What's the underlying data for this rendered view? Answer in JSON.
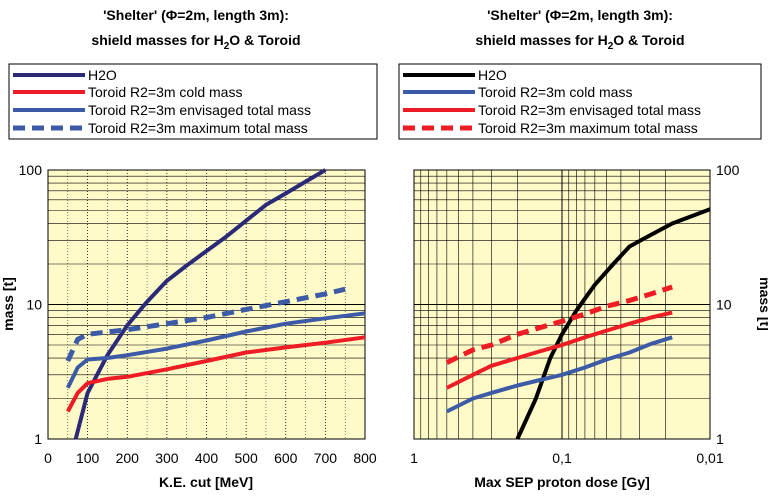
{
  "colors": {
    "plot_bg": "#fefbc8",
    "navy": "#2b2a77",
    "red": "#ee1c24",
    "blue": "#3c5aa6",
    "black": "#000000"
  },
  "chart_data": [
    {
      "type": "line",
      "title_line1": "'Shelter' (Φ=2m, length 3m):",
      "title_line2": "shield masses for H",
      "title_sub": "2",
      "title_line2_end": "O & Toroid",
      "xlabel": "K.E. cut [MeV]",
      "ylabel": "mass [t]",
      "xlim": [
        0,
        800
      ],
      "ylim": [
        1,
        100
      ],
      "y_scale": "log",
      "x_ticks": [
        "0",
        "100",
        "200",
        "300",
        "400",
        "500",
        "600",
        "700",
        "800"
      ],
      "y_ticks": [
        "1",
        "10",
        "100"
      ],
      "legend_placement": "above plot",
      "series": [
        {
          "name": "H2O",
          "style": "solid",
          "color": "#2b2a77",
          "x": [
            70,
            100,
            150,
            200,
            250,
            300,
            350,
            400,
            450,
            500,
            550,
            600,
            650,
            700
          ],
          "y": [
            1.0,
            2.2,
            4.2,
            7.0,
            10.5,
            15.0,
            19.5,
            25.0,
            32.0,
            42.0,
            55.0,
            67.0,
            82.0,
            100.0
          ]
        },
        {
          "name": "Toroid R2=3m cold mass",
          "style": "solid",
          "color": "#ee1c24",
          "x": [
            50,
            75,
            100,
            150,
            200,
            300,
            400,
            500,
            600,
            700,
            800
          ],
          "y": [
            1.6,
            2.2,
            2.6,
            2.8,
            2.9,
            3.3,
            3.8,
            4.4,
            4.8,
            5.2,
            5.7
          ]
        },
        {
          "name": "Toroid R2=3m envisaged total mass",
          "style": "solid",
          "color": "#3c5aa6",
          "x": [
            50,
            75,
            100,
            150,
            200,
            300,
            400,
            500,
            600,
            700,
            800
          ],
          "y": [
            2.4,
            3.4,
            3.9,
            4.0,
            4.2,
            4.7,
            5.4,
            6.3,
            7.2,
            7.9,
            8.6
          ]
        },
        {
          "name": "Toroid R2=3m maximum total mass",
          "style": "dashed",
          "color": "#3c5aa6",
          "x": [
            50,
            75,
            100,
            200,
            300,
            400,
            500,
            600,
            700,
            750
          ],
          "y": [
            3.8,
            5.5,
            6.0,
            6.5,
            7.2,
            8.0,
            9.2,
            10.5,
            12.0,
            13.0
          ]
        }
      ]
    },
    {
      "type": "line",
      "title_line1": "'Shelter' (Φ=2m, length 3m):",
      "title_line2": "shield masses for H",
      "title_sub": "2",
      "title_line2_end": "O & Toroid",
      "xlabel": "Max SEP proton dose [Gy]",
      "ylabel": "mass [t]",
      "x_scale": "log-reversed",
      "xlim": [
        1,
        0.01
      ],
      "ylim": [
        1,
        100
      ],
      "y_scale": "log",
      "x_ticks": [
        "1",
        "0,1",
        "0,01"
      ],
      "y_ticks": [
        "1",
        "10",
        "100"
      ],
      "legend_placement": "above plot",
      "series": [
        {
          "name": "H2O",
          "style": "solid",
          "color": "#000000",
          "x": [
            0.2,
            0.15,
            0.12,
            0.1,
            0.08,
            0.06,
            0.045,
            0.035,
            0.025,
            0.018,
            0.01
          ],
          "y": [
            1.0,
            2.0,
            4.0,
            6.0,
            9.0,
            14.0,
            20.0,
            27.0,
            33.0,
            40.0,
            51.0
          ]
        },
        {
          "name": "Toroid R2=3m cold mass",
          "style": "solid",
          "color": "#3c5aa6",
          "x": [
            0.6,
            0.4,
            0.3,
            0.2,
            0.15,
            0.1,
            0.07,
            0.05,
            0.035,
            0.025,
            0.018
          ],
          "y": [
            1.6,
            2.0,
            2.2,
            2.5,
            2.7,
            3.0,
            3.4,
            3.9,
            4.4,
            5.1,
            5.7
          ]
        },
        {
          "name": "Toroid R2=3m envisaged total mass",
          "style": "solid",
          "color": "#ee1c24",
          "x": [
            0.6,
            0.4,
            0.3,
            0.2,
            0.15,
            0.1,
            0.07,
            0.05,
            0.035,
            0.025,
            0.018
          ],
          "y": [
            2.4,
            3.0,
            3.5,
            4.0,
            4.4,
            5.0,
            5.7,
            6.4,
            7.2,
            8.0,
            8.7
          ]
        },
        {
          "name": "Toroid R2=3m maximum total mass",
          "style": "dashed",
          "color": "#ee1c24",
          "x": [
            0.6,
            0.4,
            0.3,
            0.2,
            0.15,
            0.1,
            0.07,
            0.05,
            0.035,
            0.025,
            0.018
          ],
          "y": [
            3.7,
            4.6,
            5.0,
            6.0,
            6.6,
            7.5,
            8.5,
            9.7,
            10.7,
            12.0,
            13.5
          ]
        }
      ]
    }
  ]
}
